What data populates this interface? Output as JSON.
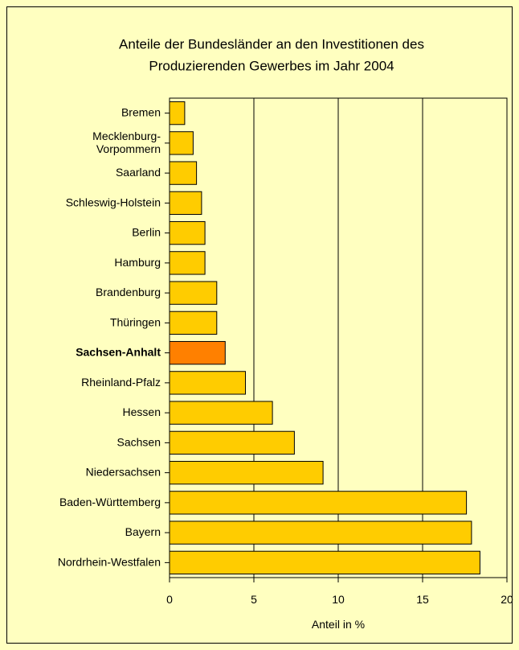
{
  "chart_data": {
    "type": "barh",
    "title": "Anteile der Bundesländer an den Investitionen des\nProduzierenden Gewerbes im Jahr 2004",
    "x_label": "Anteil in %",
    "categories": [
      "Bremen",
      "Mecklenburg-\nVorpommern",
      "Saarland",
      "Schleswig-Holstein",
      "Berlin",
      "Hamburg",
      "Brandenburg",
      "Thüringen",
      "Sachsen-Anhalt",
      "Rheinland-Pfalz",
      "Hessen",
      "Sachsen",
      "Niedersachsen",
      "Baden-Württemberg",
      "Bayern",
      "Nordrhein-Westfalen"
    ],
    "values": [
      0.9,
      1.4,
      1.6,
      1.9,
      2.1,
      2.1,
      2.8,
      2.8,
      3.3,
      4.5,
      6.1,
      7.4,
      9.1,
      17.6,
      17.9,
      18.4
    ],
    "color": "#FFCC00",
    "colors": [
      "#FFCC00",
      "#FFCC00",
      "#FFCC00",
      "#FFCC00",
      "#FFCC00",
      "#FFCC00",
      "#FFCC00",
      "#FFCC00",
      "#FF8000",
      "#FFCC00",
      "#FFCC00",
      "#FFCC00",
      "#FFCC00",
      "#FFCC00",
      "#FFCC00",
      "#FFCC00"
    ],
    "xlim": [
      0,
      20
    ],
    "xticks": [
      0,
      5,
      10,
      15,
      20
    ],
    "grid": true
  }
}
